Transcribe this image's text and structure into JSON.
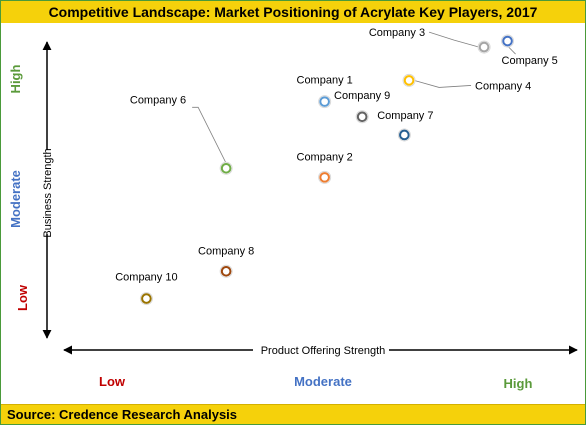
{
  "title": "Competitive Landscape: Market Positioning of Acrylate Key Players, 2017",
  "source": "Source: Credence Research Analysis",
  "colors": {
    "banner": "#f5d10b",
    "low": "#c00000",
    "moderate": "#4472c4",
    "high": "#5a9a3a"
  },
  "chart_data": {
    "type": "scatter",
    "xlabel": "Product Offering Strength",
    "ylabel": "Business Strength",
    "x_levels": [
      "Low",
      "Moderate",
      "High"
    ],
    "y_levels": [
      "Low",
      "Moderate",
      "High"
    ],
    "grid": false,
    "points": [
      {
        "name": "Company 1",
        "x": 0.56,
        "y": 0.79,
        "color": "#5b9bd5"
      },
      {
        "name": "Company 2",
        "x": 0.56,
        "y": 0.54,
        "color": "#ed7d31"
      },
      {
        "name": "Company 3",
        "x": 0.9,
        "y": 0.97,
        "color": "#a5a5a5"
      },
      {
        "name": "Company 4",
        "x": 0.74,
        "y": 0.86,
        "color": "#ffc000"
      },
      {
        "name": "Company 5",
        "x": 0.95,
        "y": 0.99,
        "color": "#4472c4"
      },
      {
        "name": "Company 6",
        "x": 0.35,
        "y": 0.57,
        "color": "#70ad47"
      },
      {
        "name": "Company 7",
        "x": 0.73,
        "y": 0.68,
        "color": "#255e91"
      },
      {
        "name": "Company 8",
        "x": 0.35,
        "y": 0.23,
        "color": "#9e480e"
      },
      {
        "name": "Company 9",
        "x": 0.64,
        "y": 0.74,
        "color": "#636363"
      },
      {
        "name": "Company 10",
        "x": 0.18,
        "y": 0.14,
        "color": "#997300"
      }
    ]
  }
}
